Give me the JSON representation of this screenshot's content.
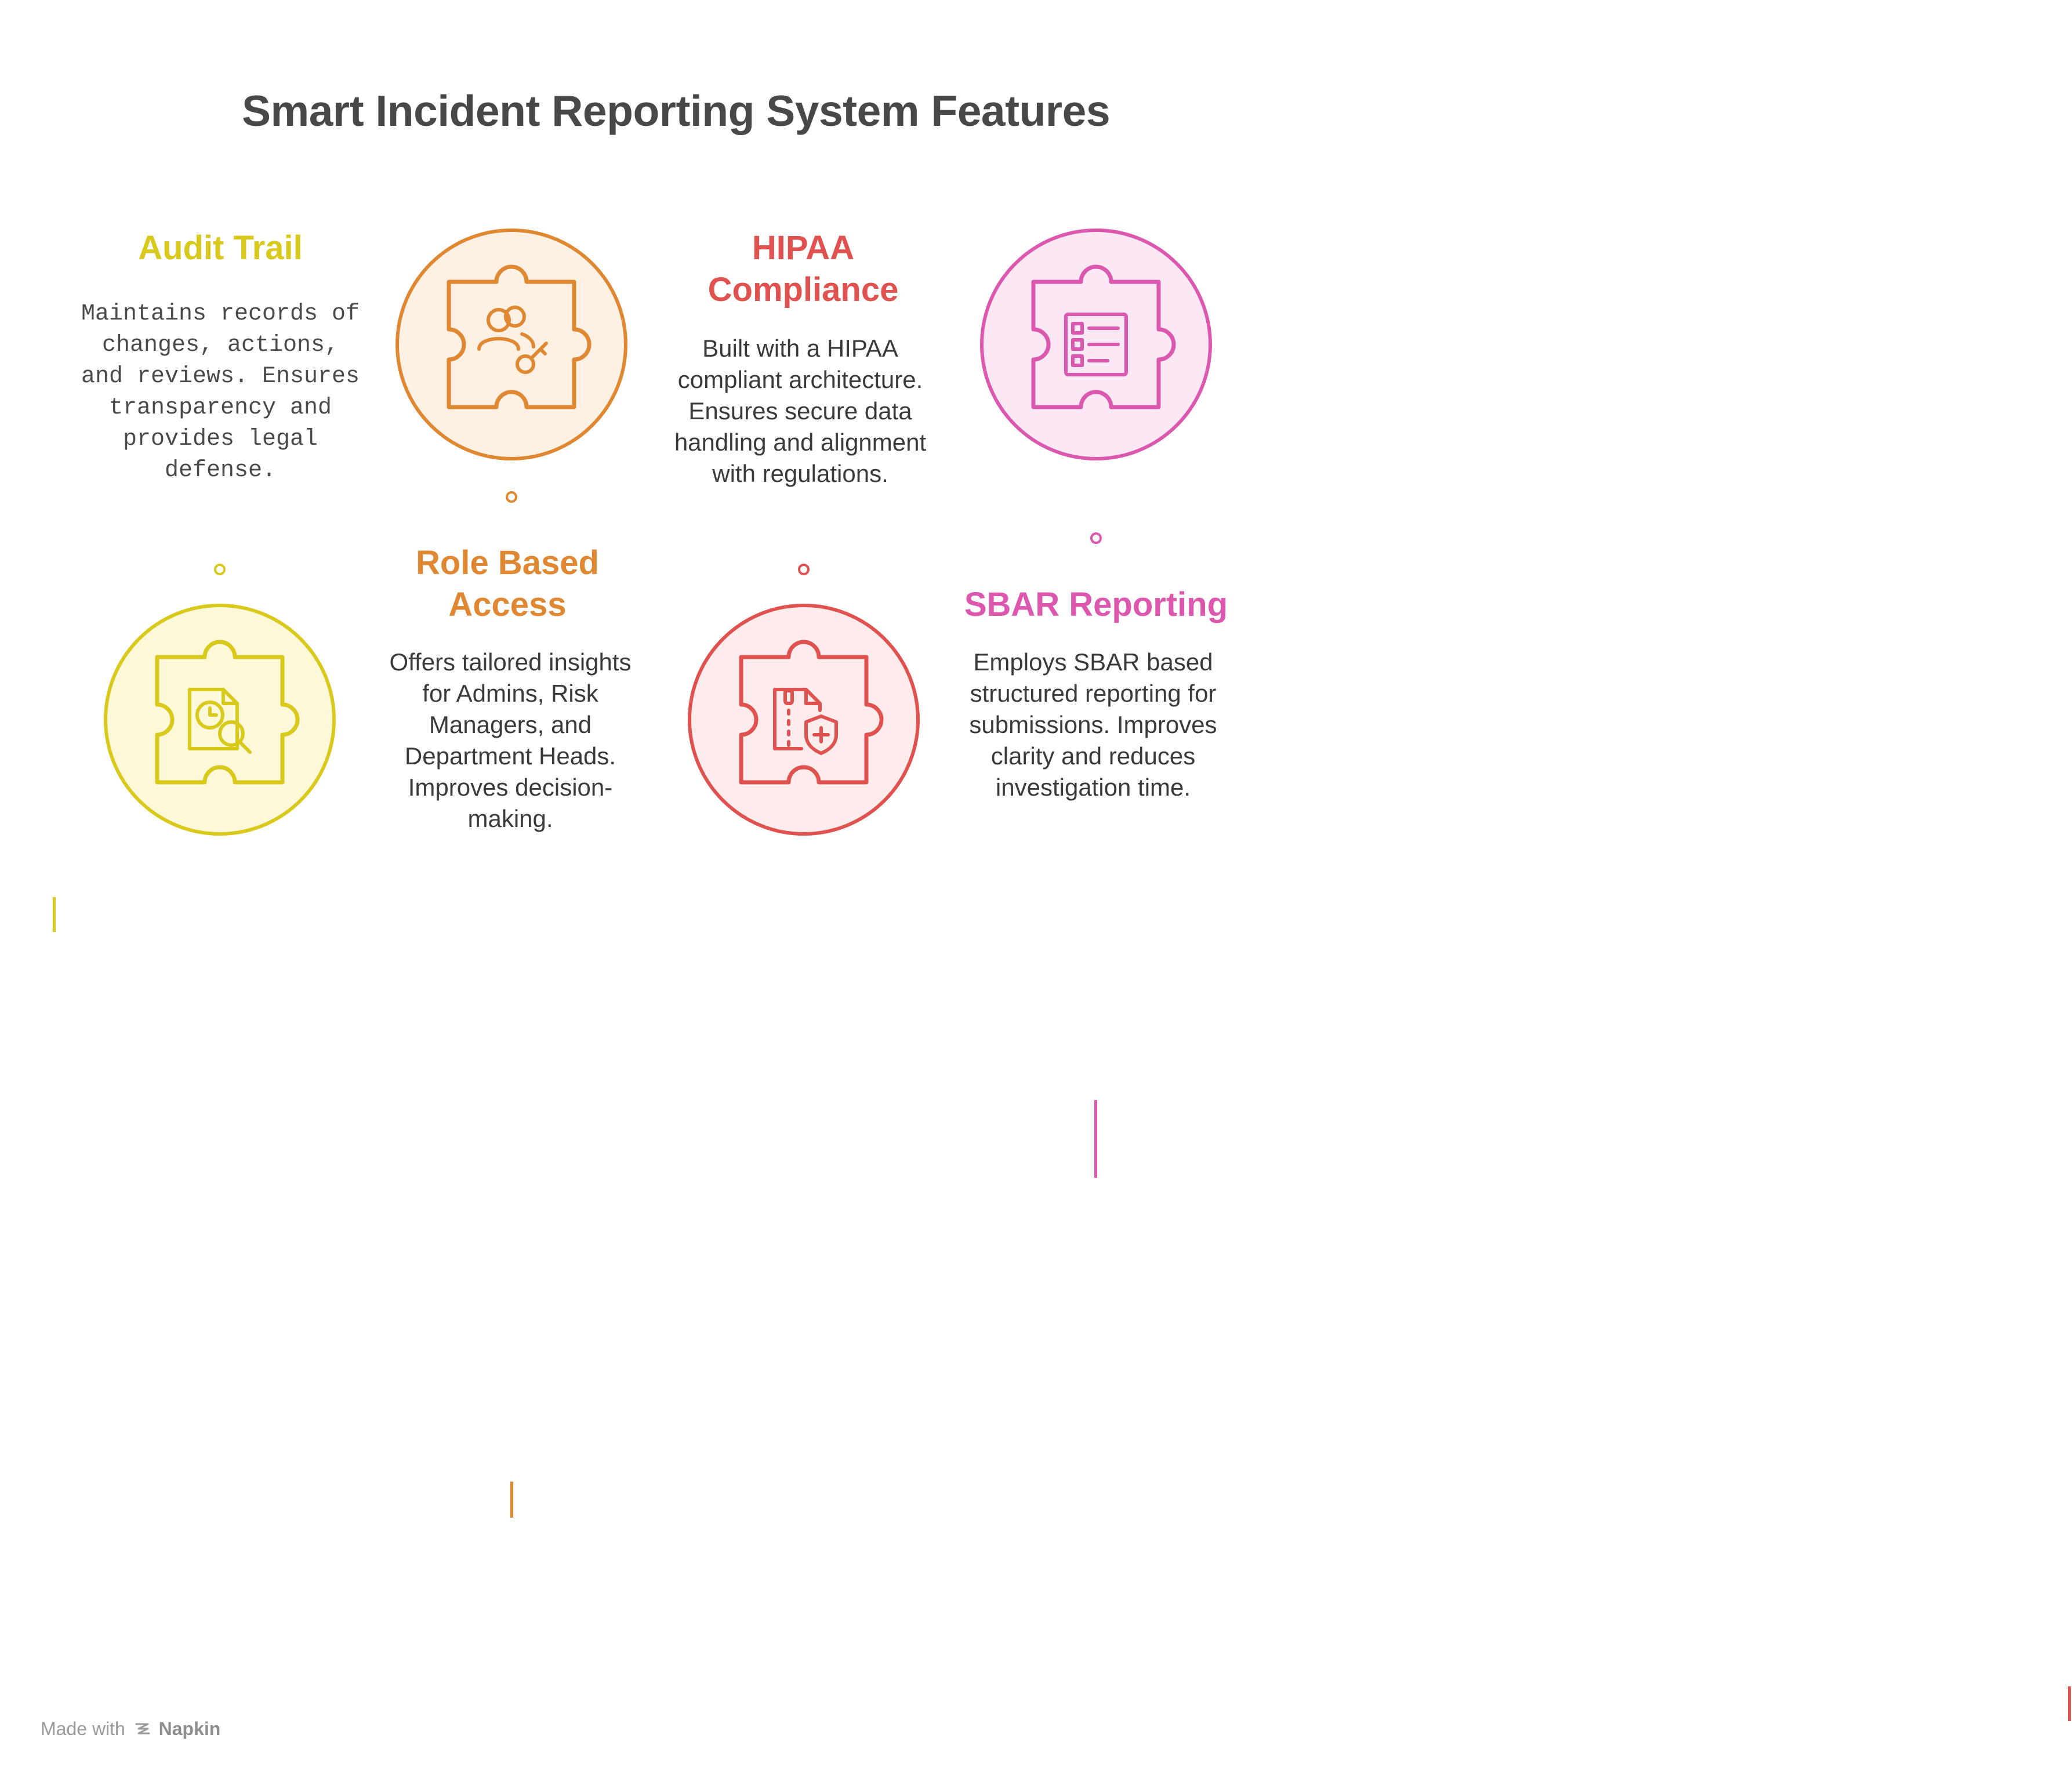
{
  "title": "Smart Incident Reporting System Features",
  "colors": {
    "yellow": "#D9C91C",
    "orange": "#E08731",
    "red": "#E05250",
    "pink": "#DC58AE",
    "yellow_fill": "#FDF8D8",
    "orange_fill": "#FEF0E3",
    "red_fill": "#FDECEB",
    "pink_fill": "#FCE8F5",
    "title_text": "#484848",
    "body_text": "#3a3a3a"
  },
  "features": [
    {
      "id": "audit-trail",
      "title": "Audit Trail",
      "description": "Maintains records of changes, actions, and reviews. Ensures transparency and provides legal defense.",
      "icon": "document-clock-search-icon",
      "color": "yellow"
    },
    {
      "id": "role-based-access",
      "title": "Role Based Access",
      "description": "Offers tailored insights for Admins, Risk Managers, and Department Heads. Improves decision-making.",
      "icon": "users-key-icon",
      "color": "orange"
    },
    {
      "id": "hipaa-compliance",
      "title": "HIPAA Compliance",
      "description": "Built with a HIPAA compliant architecture. Ensures secure data handling and alignment with regulations.",
      "icon": "zip-file-shield-icon",
      "color": "red"
    },
    {
      "id": "sbar-reporting",
      "title": "SBAR Reporting",
      "description": "Employs SBAR based structured reporting for submissions. Improves clarity and reduces investigation time.",
      "icon": "checklist-form-icon",
      "color": "pink"
    }
  ],
  "footer": {
    "made_with": "Made with",
    "brand": "Napkin"
  }
}
